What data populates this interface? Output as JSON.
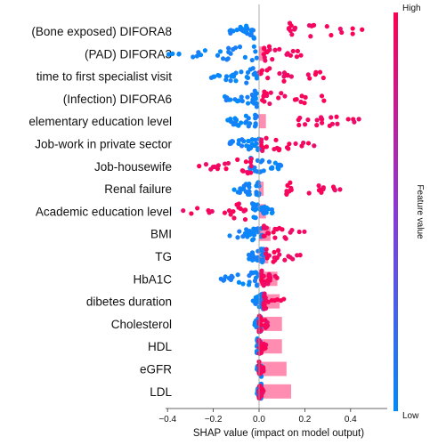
{
  "chart_data": {
    "type": "scatter",
    "subtype": "shap_beeswarm_with_bar_overlay",
    "xlabel": "SHAP value (impact on model output)",
    "xlim": [
      -0.45,
      0.58
    ],
    "x_ticks": [
      -0.4,
      -0.2,
      0.0,
      0.2,
      0.4
    ],
    "x_tick_labels": [
      "−0.4",
      "−0.2",
      "0.0",
      "0.2",
      "0.4"
    ],
    "grid": false,
    "colorbar": {
      "label": "Feature value",
      "high_label": "High",
      "low_label": "Low",
      "high_color": "#ff0052",
      "low_color": "#008bfb",
      "placement": "right"
    },
    "features": [
      {
        "name": "(Bone exposed) DIFORA8",
        "bar": 0.0,
        "low_range": [
          -0.13,
          -0.02
        ],
        "high_range": [
          0.13,
          0.52
        ]
      },
      {
        "name": "(PAD) DIFORA3",
        "bar": 0.03,
        "low_range": [
          -0.4,
          -0.01
        ],
        "high_range": [
          0.02,
          0.2
        ]
      },
      {
        "name": "time to first specialist visit",
        "bar": 0.0,
        "low_range": [
          -0.21,
          -0.01
        ],
        "high_range": [
          0.0,
          0.44
        ]
      },
      {
        "name": "(Infection)  DIFORA6",
        "bar": 0.0,
        "low_range": [
          -0.15,
          -0.01
        ],
        "high_range": [
          0.01,
          0.3
        ]
      },
      {
        "name": "elementary education level",
        "bar": 0.03,
        "low_range": [
          -0.14,
          -0.01
        ],
        "high_range": [
          0.17,
          0.45
        ]
      },
      {
        "name": "Job-work in private sector",
        "bar": 0.0,
        "low_range": [
          -0.13,
          0.0
        ],
        "high_range": [
          0.01,
          0.27
        ]
      },
      {
        "name": "Job-housewife",
        "bar": 0.0,
        "low_range": [
          -0.04,
          0.1
        ],
        "high_range": [
          -0.27,
          -0.03
        ]
      },
      {
        "name": "Renal failure",
        "bar": 0.02,
        "low_range": [
          -0.12,
          0.0
        ],
        "high_range": [
          0.12,
          0.36
        ]
      },
      {
        "name": "Academic education level",
        "bar": 0.03,
        "low_range": [
          -0.03,
          0.06
        ],
        "high_range": [
          -0.37,
          -0.06
        ]
      },
      {
        "name": "BMI",
        "bar": 0.05,
        "low_range": [
          -0.13,
          0.02
        ],
        "high_range": [
          0.02,
          0.2
        ]
      },
      {
        "name": "TG",
        "bar": 0.04,
        "low_range": [
          -0.05,
          0.02
        ],
        "high_range": [
          0.03,
          0.18
        ]
      },
      {
        "name": "HbA1C",
        "bar": 0.08,
        "low_range": [
          -0.17,
          0.0
        ],
        "high_range": [
          0.01,
          0.08
        ]
      },
      {
        "name": "dibetes duration",
        "bar": 0.09,
        "low_range": [
          -0.03,
          0.02
        ],
        "high_range": [
          0.02,
          0.11
        ]
      },
      {
        "name": "Cholesterol",
        "bar": 0.1,
        "low_range": [
          -0.02,
          0.01
        ],
        "high_range": [
          0.0,
          0.04
        ]
      },
      {
        "name": "HDL",
        "bar": 0.1,
        "low_range": [
          -0.01,
          0.02
        ],
        "high_range": [
          0.0,
          0.03
        ]
      },
      {
        "name": "eGFR",
        "bar": 0.12,
        "low_range": [
          -0.01,
          0.01
        ],
        "high_range": [
          0.0,
          0.02
        ]
      },
      {
        "name": "LDL",
        "bar": 0.14,
        "low_range": [
          -0.01,
          0.01
        ],
        "high_range": [
          0.0,
          0.02
        ]
      }
    ]
  }
}
